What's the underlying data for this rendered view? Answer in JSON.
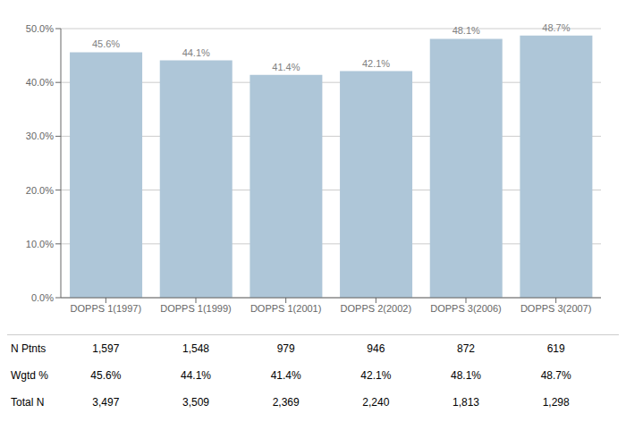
{
  "chart_data": {
    "type": "bar",
    "categories": [
      "DOPPS 1(1997)",
      "DOPPS 1(1999)",
      "DOPPS 1(2001)",
      "DOPPS 2(2002)",
      "DOPPS 3(2006)",
      "DOPPS 3(2007)"
    ],
    "values": [
      45.6,
      44.1,
      41.4,
      42.1,
      48.1,
      48.7
    ],
    "value_labels": [
      "45.6%",
      "44.1%",
      "41.4%",
      "42.1%",
      "48.1%",
      "48.7%"
    ],
    "data_labels": true,
    "color": "#aec6d8",
    "ylim": [
      0,
      50
    ],
    "yticks": [
      {
        "value": 0,
        "label": "0.0%"
      },
      {
        "value": 10,
        "label": "10.0%"
      },
      {
        "value": 20,
        "label": "20.0%"
      },
      {
        "value": 30,
        "label": "30.0%"
      },
      {
        "value": 40,
        "label": "40.0%"
      },
      {
        "value": 50,
        "label": "50.0%"
      }
    ],
    "grid": true,
    "table": {
      "row_labels": [
        "N Ptnts",
        "Wgtd %",
        "Total N"
      ],
      "rows": [
        [
          "1,597",
          "1,548",
          "979",
          "946",
          "872",
          "619"
        ],
        [
          "45.6%",
          "44.1%",
          "41.4%",
          "42.1%",
          "48.1%",
          "48.7%"
        ],
        [
          "3,497",
          "3,509",
          "2,369",
          "2,240",
          "1,813",
          "1,298"
        ]
      ]
    }
  }
}
